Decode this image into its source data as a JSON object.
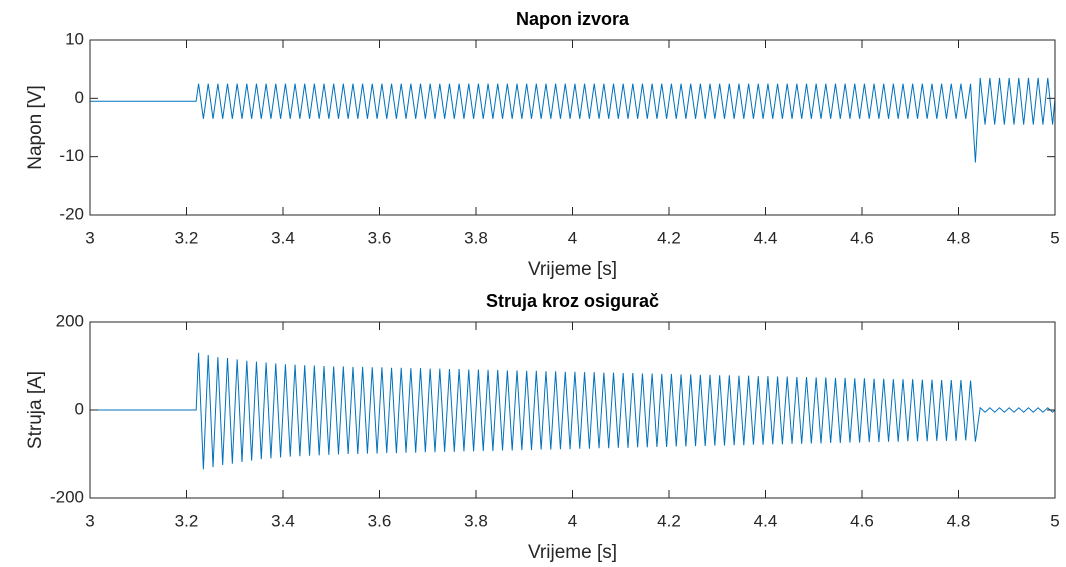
{
  "chart_data": [
    {
      "type": "line",
      "title": "Napon izvora",
      "xlabel": "Vrijeme [s]",
      "ylabel": "Napon [V]",
      "xlim": [
        3,
        5
      ],
      "xticks": [
        3,
        3.2,
        3.4,
        3.6,
        3.8,
        4,
        4.2,
        4.4,
        4.6,
        4.8,
        5
      ],
      "ylim": [
        -20,
        10
      ],
      "yticks": [
        -20,
        -10,
        0,
        10
      ],
      "grid": false,
      "x": [
        3,
        3.22,
        3.225,
        3.235,
        3.245,
        3.255,
        3.265,
        3.275,
        3.285,
        3.295,
        3.305,
        3.315,
        3.325,
        3.335,
        3.345,
        3.355,
        3.365,
        3.375,
        3.385,
        3.395,
        3.405,
        3.415,
        3.425,
        3.435,
        3.445,
        3.455,
        3.465,
        3.475,
        3.485,
        3.495,
        3.505,
        3.515,
        3.525,
        3.535,
        3.545,
        3.555,
        3.565,
        3.575,
        3.585,
        3.595,
        3.605,
        3.615,
        3.625,
        3.635,
        3.645,
        3.655,
        3.665,
        3.675,
        3.685,
        3.695,
        3.705,
        3.715,
        3.725,
        3.735,
        3.745,
        3.755,
        3.765,
        3.775,
        3.785,
        3.795,
        3.805,
        3.815,
        3.825,
        3.835,
        3.845,
        3.855,
        3.865,
        3.875,
        3.885,
        3.895,
        3.905,
        3.915,
        3.925,
        3.935,
        3.945,
        3.955,
        3.965,
        3.975,
        3.985,
        3.995,
        4.005,
        4.015,
        4.025,
        4.035,
        4.045,
        4.055,
        4.065,
        4.075,
        4.085,
        4.095,
        4.105,
        4.115,
        4.125,
        4.135,
        4.145,
        4.155,
        4.165,
        4.175,
        4.185,
        4.195,
        4.205,
        4.215,
        4.225,
        4.235,
        4.245,
        4.255,
        4.265,
        4.275,
        4.285,
        4.295,
        4.305,
        4.315,
        4.325,
        4.335,
        4.345,
        4.355,
        4.365,
        4.375,
        4.385,
        4.395,
        4.405,
        4.415,
        4.425,
        4.435,
        4.445,
        4.455,
        4.465,
        4.475,
        4.485,
        4.495,
        4.505,
        4.515,
        4.525,
        4.535,
        4.545,
        4.555,
        4.565,
        4.575,
        4.585,
        4.595,
        4.605,
        4.615,
        4.625,
        4.635,
        4.645,
        4.655,
        4.665,
        4.675,
        4.685,
        4.695,
        4.705,
        4.715,
        4.725,
        4.735,
        4.745,
        4.755,
        4.765,
        4.775,
        4.785,
        4.795,
        4.805,
        4.815,
        4.825,
        4.835,
        4.845,
        4.855,
        4.865,
        4.875,
        4.885,
        4.895,
        4.905,
        4.915,
        4.925,
        4.935,
        4.945,
        4.955,
        4.965,
        4.975,
        4.985,
        4.995,
        5
      ],
      "series": [
        {
          "color": "#0072bd",
          "values": [
            -0.5,
            -0.5,
            2.5,
            -3.5,
            2.5,
            -3.5,
            2.5,
            -3.5,
            2.5,
            -3.5,
            2.5,
            -3.5,
            2.5,
            -3.5,
            2.5,
            -3.5,
            2.5,
            -3.5,
            2.5,
            -3.5,
            2.5,
            -3.5,
            2.5,
            -3.5,
            2.5,
            -3.5,
            2.5,
            -3.5,
            2.5,
            -3.5,
            2.5,
            -3.5,
            2.5,
            -3.5,
            2.5,
            -3.5,
            2.5,
            -3.5,
            2.5,
            -3.5,
            2.5,
            -3.5,
            2.5,
            -3.5,
            2.5,
            -3.5,
            2.5,
            -3.5,
            2.5,
            -3.5,
            2.5,
            -3.5,
            2.5,
            -3.5,
            2.5,
            -3.5,
            2.5,
            -3.5,
            2.5,
            -3.5,
            2.5,
            -3.5,
            2.5,
            -3.5,
            2.5,
            -3.5,
            2.5,
            -3.5,
            2.5,
            -3.5,
            2.5,
            -3.5,
            2.5,
            -3.5,
            2.5,
            -3.5,
            2.5,
            -3.5,
            2.5,
            -3.5,
            2.5,
            -3.5,
            2.5,
            -3.5,
            2.5,
            -3.5,
            2.5,
            -3.5,
            2.5,
            -3.5,
            2.5,
            -3.5,
            2.5,
            -3.5,
            2.5,
            -3.5,
            2.5,
            -3.5,
            2.5,
            -3.5,
            2.5,
            -3.5,
            2.5,
            -3.5,
            2.5,
            -3.5,
            2.5,
            -3.5,
            2.5,
            -3.5,
            2.5,
            -3.5,
            2.5,
            -3.5,
            2.5,
            -3.5,
            2.5,
            -3.5,
            2.5,
            -3.5,
            2.5,
            -3.5,
            2.5,
            -3.5,
            2.5,
            -3.5,
            2.5,
            -3.5,
            2.5,
            -3.5,
            2.5,
            -3.5,
            2.5,
            -3.5,
            2.5,
            -3.5,
            2.5,
            -3.5,
            2.5,
            -3.5,
            2.5,
            -3.5,
            2.5,
            -3.5,
            2.5,
            -3.5,
            2.5,
            -3.5,
            2.5,
            -3.5,
            2.5,
            -3.5,
            2.5,
            -3.5,
            2.5,
            -3.5,
            2.5,
            -3.5,
            2.5,
            -3.5,
            2.5,
            -3.5,
            2.5,
            -11,
            3.5,
            -4.5,
            3.5,
            -4.5,
            3.5,
            -4.5,
            3.5,
            -4.5,
            3.5,
            -4.5,
            3.5,
            -4.5,
            3.5,
            -4.5,
            3.5,
            -4.5,
            0
          ]
        }
      ]
    },
    {
      "type": "line",
      "title": "Struja kroz osigurač",
      "xlabel": "Vrijeme [s]",
      "ylabel": "Struja [A]",
      "xlim": [
        3,
        5
      ],
      "xticks": [
        3,
        3.2,
        3.4,
        3.6,
        3.8,
        4,
        4.2,
        4.4,
        4.6,
        4.8,
        5
      ],
      "ylim": [
        -200,
        200
      ],
      "yticks": [
        -200,
        0,
        200
      ],
      "grid": false,
      "x": [
        3,
        3.22,
        3.225,
        3.235,
        3.245,
        3.255,
        3.265,
        3.275,
        3.285,
        3.295,
        3.305,
        3.315,
        3.325,
        3.335,
        3.345,
        3.355,
        3.365,
        3.375,
        3.385,
        3.395,
        3.405,
        3.415,
        3.425,
        3.435,
        3.445,
        3.455,
        3.465,
        3.475,
        3.485,
        3.495,
        3.505,
        3.515,
        3.525,
        3.535,
        3.545,
        3.555,
        3.565,
        3.575,
        3.585,
        3.595,
        3.605,
        3.615,
        3.625,
        3.635,
        3.645,
        3.655,
        3.665,
        3.675,
        3.685,
        3.695,
        3.705,
        3.715,
        3.725,
        3.735,
        3.745,
        3.755,
        3.765,
        3.775,
        3.785,
        3.795,
        3.805,
        3.815,
        3.825,
        3.835,
        3.845,
        3.855,
        3.865,
        3.875,
        3.885,
        3.895,
        3.905,
        3.915,
        3.925,
        3.935,
        3.945,
        3.955,
        3.965,
        3.975,
        3.985,
        3.995,
        4.005,
        4.015,
        4.025,
        4.035,
        4.045,
        4.055,
        4.065,
        4.075,
        4.085,
        4.095,
        4.105,
        4.115,
        4.125,
        4.135,
        4.145,
        4.155,
        4.165,
        4.175,
        4.185,
        4.195,
        4.205,
        4.215,
        4.225,
        4.235,
        4.245,
        4.255,
        4.265,
        4.275,
        4.285,
        4.295,
        4.305,
        4.315,
        4.325,
        4.335,
        4.345,
        4.355,
        4.365,
        4.375,
        4.385,
        4.395,
        4.405,
        4.415,
        4.425,
        4.435,
        4.445,
        4.455,
        4.465,
        4.475,
        4.485,
        4.495,
        4.505,
        4.515,
        4.525,
        4.535,
        4.545,
        4.555,
        4.565,
        4.575,
        4.585,
        4.595,
        4.605,
        4.615,
        4.625,
        4.635,
        4.645,
        4.655,
        4.665,
        4.675,
        4.685,
        4.695,
        4.705,
        4.715,
        4.725,
        4.735,
        4.745,
        4.755,
        4.765,
        4.775,
        4.785,
        4.795,
        4.805,
        4.815,
        4.825,
        4.835,
        4.845,
        4.855,
        4.865,
        4.875,
        4.885,
        4.895,
        4.905,
        4.915,
        4.925,
        4.935,
        4.945,
        4.955,
        4.965,
        4.975,
        4.985,
        4.995,
        5
      ],
      "series": [
        {
          "color": "#0072bd",
          "values": [
            0,
            0,
            130,
            -135,
            125,
            -130,
            120,
            -125,
            118,
            -122,
            115,
            -118,
            112,
            -115,
            110,
            -112,
            108,
            -110,
            106,
            -108,
            104,
            -106,
            103,
            -105,
            102,
            -104,
            101,
            -103,
            100,
            -102,
            99,
            -101,
            99,
            -100,
            98,
            -100,
            98,
            -99,
            97,
            -99,
            97,
            -98,
            96,
            -98,
            96,
            -97,
            95,
            -97,
            95,
            -96,
            94,
            -96,
            94,
            -95,
            93,
            -95,
            93,
            -94,
            92,
            -94,
            92,
            -93,
            91,
            -93,
            91,
            -92,
            90,
            -92,
            90,
            -91,
            89,
            -91,
            89,
            -90,
            88,
            -90,
            88,
            -89,
            87,
            -89,
            87,
            -88,
            86,
            -88,
            86,
            -87,
            85,
            -87,
            85,
            -86,
            84,
            -86,
            84,
            -85,
            83,
            -85,
            83,
            -84,
            82,
            -84,
            82,
            -83,
            81,
            -83,
            81,
            -82,
            80,
            -82,
            80,
            -81,
            79,
            -81,
            79,
            -80,
            78,
            -80,
            78,
            -79,
            77,
            -79,
            77,
            -78,
            76,
            -78,
            76,
            -77,
            75,
            -77,
            75,
            -76,
            74,
            -76,
            74,
            -75,
            73,
            -75,
            73,
            -74,
            72,
            -74,
            72,
            -73,
            71,
            -73,
            71,
            -72,
            70,
            -72,
            70,
            -71,
            70,
            -71,
            69,
            -71,
            69,
            -70,
            68,
            -70,
            68,
            -70,
            68,
            -69,
            67,
            -72,
            5,
            -5,
            5,
            -5,
            5,
            -5,
            5,
            -5,
            5,
            -5,
            5,
            -5,
            5,
            -5,
            5,
            -5,
            0
          ]
        }
      ]
    }
  ]
}
